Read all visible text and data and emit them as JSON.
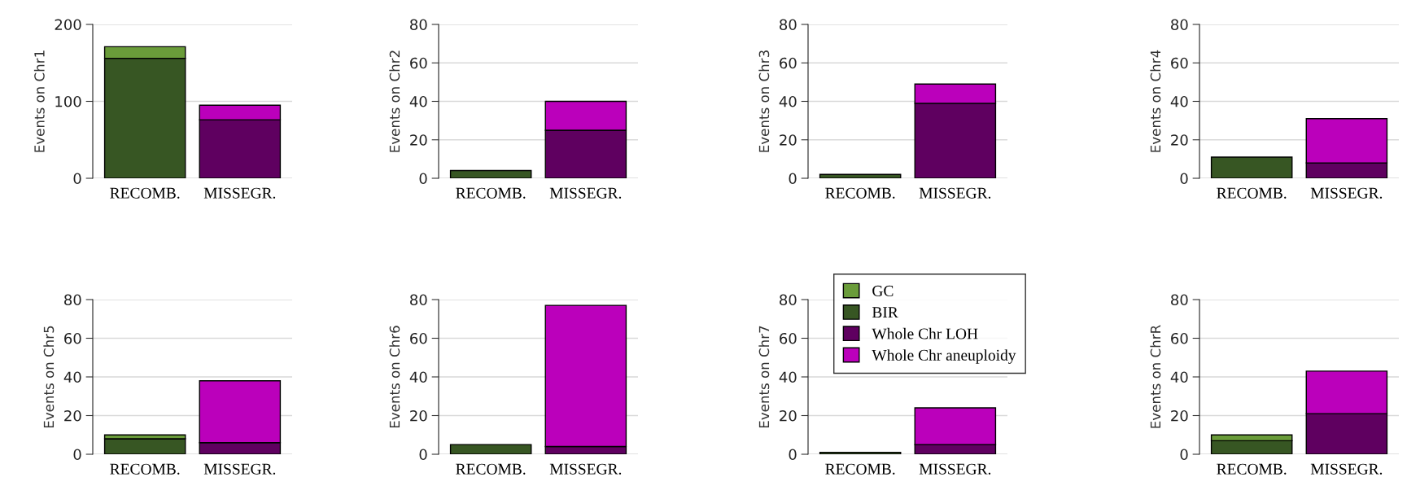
{
  "chart_data": [
    {
      "type": "bar",
      "stacked": true,
      "ylabel": "Events on Chr1",
      "categories": [
        "RECOMB.",
        "MISSEGR."
      ],
      "ylim": [
        0,
        200
      ],
      "yticks": [
        0,
        100,
        200
      ],
      "grid": "y",
      "legend": "bottom right",
      "series": [
        {
          "name": "BIR",
          "color": "#375623",
          "values": [
            156,
            null
          ]
        },
        {
          "name": "GC",
          "color": "#6a9c3a",
          "values": [
            15,
            null
          ]
        },
        {
          "name": "Whole Chr LOH",
          "color": "#5f0060",
          "values": [
            null,
            76
          ]
        },
        {
          "name": "Whole Chr aneuploidy",
          "color": "#bb00bb",
          "values": [
            null,
            19
          ]
        }
      ]
    },
    {
      "type": "bar",
      "stacked": true,
      "ylabel": "Events on Chr2",
      "categories": [
        "RECOMB.",
        "MISSEGR."
      ],
      "ylim": [
        0,
        80
      ],
      "yticks": [
        0,
        20,
        40,
        60,
        80
      ],
      "grid": "y",
      "series": [
        {
          "color": "#375623",
          "values": [
            4,
            null
          ]
        },
        {
          "color": "#5f0060",
          "values": [
            null,
            25
          ]
        },
        {
          "color": "#bb00bb",
          "values": [
            null,
            15
          ]
        }
      ]
    },
    {
      "type": "bar",
      "stacked": true,
      "ylabel": "Events on Chr3",
      "categories": [
        "RECOMB.",
        "MISSEGR."
      ],
      "ylim": [
        0,
        80
      ],
      "yticks": [
        0,
        20,
        40,
        60,
        80
      ],
      "grid": "y",
      "series": [
        {
          "color": "#375623",
          "values": [
            2,
            null
          ]
        },
        {
          "color": "#5f0060",
          "values": [
            null,
            39
          ]
        },
        {
          "color": "#bb00bb",
          "values": [
            null,
            10
          ]
        }
      ]
    },
    {
      "type": "bar",
      "stacked": true,
      "ylabel": "Events on Chr4",
      "categories": [
        "RECOMB.",
        "MISSEGR."
      ],
      "ylim": [
        0,
        80
      ],
      "yticks": [
        0,
        20,
        40,
        60,
        80
      ],
      "grid": "y",
      "series": [
        {
          "color": "#375623",
          "values": [
            11,
            null
          ]
        },
        {
          "color": "#5f0060",
          "values": [
            null,
            8
          ]
        },
        {
          "color": "#bb00bb",
          "values": [
            null,
            23
          ]
        }
      ]
    },
    {
      "type": "bar",
      "stacked": true,
      "ylabel": "Events on Chr5",
      "categories": [
        "RECOMB.",
        "MISSEGR."
      ],
      "ylim": [
        0,
        80
      ],
      "yticks": [
        0,
        20,
        40,
        60,
        80
      ],
      "grid": "y",
      "series": [
        {
          "color": "#375623",
          "values": [
            8,
            null
          ]
        },
        {
          "color": "#6a9c3a",
          "values": [
            2,
            null
          ]
        },
        {
          "color": "#5f0060",
          "values": [
            null,
            6
          ]
        },
        {
          "color": "#bb00bb",
          "values": [
            null,
            32
          ]
        }
      ]
    },
    {
      "type": "bar",
      "stacked": true,
      "ylabel": "Events on Chr6",
      "categories": [
        "RECOMB.",
        "MISSEGR."
      ],
      "ylim": [
        0,
        80
      ],
      "yticks": [
        0,
        20,
        40,
        60,
        80
      ],
      "grid": "y",
      "series": [
        {
          "color": "#375623",
          "values": [
            5,
            null
          ]
        },
        {
          "color": "#5f0060",
          "values": [
            null,
            4
          ]
        },
        {
          "color": "#bb00bb",
          "values": [
            null,
            73
          ]
        }
      ]
    },
    {
      "type": "bar",
      "stacked": true,
      "ylabel": "Events on Chr7",
      "categories": [
        "RECOMB.",
        "MISSEGR."
      ],
      "ylim": [
        0,
        80
      ],
      "yticks": [
        0,
        20,
        40,
        60,
        80
      ],
      "grid": "y",
      "series": [
        {
          "color": "#375623",
          "values": [
            1,
            null
          ]
        },
        {
          "color": "#5f0060",
          "values": [
            null,
            5
          ]
        },
        {
          "color": "#bb00bb",
          "values": [
            null,
            19
          ]
        }
      ]
    },
    {
      "type": "bar",
      "stacked": true,
      "ylabel": "Events on ChrR",
      "categories": [
        "RECOMB.",
        "MISSEGR."
      ],
      "ylim": [
        0,
        80
      ],
      "yticks": [
        0,
        20,
        40,
        60,
        80
      ],
      "grid": "y",
      "series": [
        {
          "color": "#375623",
          "values": [
            7,
            null
          ]
        },
        {
          "color": "#6a9c3a",
          "values": [
            3,
            null
          ]
        },
        {
          "color": "#5f0060",
          "values": [
            null,
            21
          ]
        },
        {
          "color": "#bb00bb",
          "values": [
            null,
            22
          ]
        }
      ]
    }
  ]
}
